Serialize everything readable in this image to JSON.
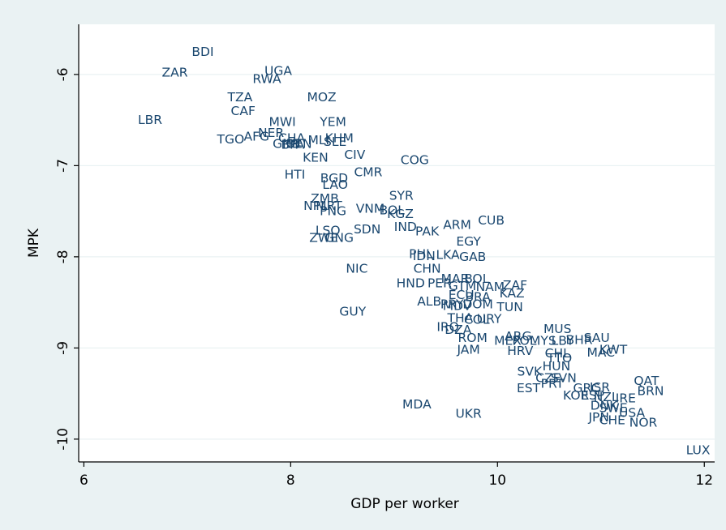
{
  "chart_data": {
    "type": "scatter",
    "xlabel": "GDP per worker",
    "ylabel": "MPK",
    "xlim": [
      5.95,
      12.1
    ],
    "ylim": [
      -10.25,
      -5.45
    ],
    "xticks": [
      6,
      8,
      10,
      12
    ],
    "yticks": [
      -6,
      -7,
      -8,
      -9,
      -10
    ],
    "grid": true,
    "colors": {
      "background": "#eaf2f3",
      "plot": "#ffffff",
      "grid": "#eaf2f3",
      "marker_label": "#1a476f"
    },
    "points": [
      {
        "label": "BDI",
        "x": 7.15,
        "y": -5.75
      },
      {
        "label": "ZAR",
        "x": 6.88,
        "y": -5.98
      },
      {
        "label": "UGA",
        "x": 7.88,
        "y": -5.96
      },
      {
        "label": "RWA",
        "x": 7.77,
        "y": -6.05
      },
      {
        "label": "TZA",
        "x": 7.51,
        "y": -6.25
      },
      {
        "label": "MOZ",
        "x": 8.3,
        "y": -6.25
      },
      {
        "label": "CAF",
        "x": 7.54,
        "y": -6.4
      },
      {
        "label": "LBR",
        "x": 6.64,
        "y": -6.5
      },
      {
        "label": "MWI",
        "x": 7.92,
        "y": -6.52
      },
      {
        "label": "YEM",
        "x": 8.41,
        "y": -6.52
      },
      {
        "label": "NER",
        "x": 7.81,
        "y": -6.64
      },
      {
        "label": "AFG",
        "x": 7.67,
        "y": -6.68
      },
      {
        "label": "TGO",
        "x": 7.42,
        "y": -6.71
      },
      {
        "label": "CHA",
        "x": 8.01,
        "y": -6.7
      },
      {
        "label": "KHM",
        "x": 8.47,
        "y": -6.7
      },
      {
        "label": "GNB",
        "x": 7.96,
        "y": -6.76
      },
      {
        "label": "BEN",
        "x": 8.08,
        "y": -6.76
      },
      {
        "label": "MLI",
        "x": 8.27,
        "y": -6.72
      },
      {
        "label": "SLE",
        "x": 8.43,
        "y": -6.74
      },
      {
        "label": "BFA",
        "x": 8.02,
        "y": -6.77
      },
      {
        "label": "KEN",
        "x": 8.24,
        "y": -6.91
      },
      {
        "label": "CIV",
        "x": 8.62,
        "y": -6.88
      },
      {
        "label": "COG",
        "x": 9.2,
        "y": -6.94
      },
      {
        "label": "HTI",
        "x": 8.04,
        "y": -7.1
      },
      {
        "label": "CMR",
        "x": 8.75,
        "y": -7.07
      },
      {
        "label": "BGD",
        "x": 8.42,
        "y": -7.14
      },
      {
        "label": "LAO",
        "x": 8.43,
        "y": -7.21
      },
      {
        "label": "SYR",
        "x": 9.07,
        "y": -7.33
      },
      {
        "label": "ZMB",
        "x": 8.33,
        "y": -7.36
      },
      {
        "label": "NPL",
        "x": 8.24,
        "y": -7.44
      },
      {
        "label": "MRT",
        "x": 8.37,
        "y": -7.44
      },
      {
        "label": "VNM",
        "x": 8.77,
        "y": -7.47
      },
      {
        "label": "BOL",
        "x": 8.98,
        "y": -7.49
      },
      {
        "label": "KGZ",
        "x": 9.06,
        "y": -7.53
      },
      {
        "label": "PNG",
        "x": 8.41,
        "y": -7.5
      },
      {
        "label": "CUB",
        "x": 9.94,
        "y": -7.6
      },
      {
        "label": "IND",
        "x": 9.11,
        "y": -7.67
      },
      {
        "label": "ARM",
        "x": 9.61,
        "y": -7.65
      },
      {
        "label": "PAK",
        "x": 9.32,
        "y": -7.72
      },
      {
        "label": "LSO",
        "x": 8.36,
        "y": -7.71
      },
      {
        "label": "SDN",
        "x": 8.74,
        "y": -7.7
      },
      {
        "label": "ZWE",
        "x": 8.32,
        "y": -7.79
      },
      {
        "label": "GNG",
        "x": 8.47,
        "y": -7.79
      },
      {
        "label": "EGY",
        "x": 9.72,
        "y": -7.83
      },
      {
        "label": "PHL",
        "x": 9.26,
        "y": -7.97
      },
      {
        "label": "IDN",
        "x": 9.29,
        "y": -7.99
      },
      {
        "label": "LKA",
        "x": 9.52,
        "y": -7.98
      },
      {
        "label": "GAB",
        "x": 9.76,
        "y": -8.0
      },
      {
        "label": "NIC",
        "x": 8.64,
        "y": -8.13
      },
      {
        "label": "CHN",
        "x": 9.32,
        "y": -8.13
      },
      {
        "label": "MAR",
        "x": 9.59,
        "y": -8.24
      },
      {
        "label": "BOL",
        "x": 9.8,
        "y": -8.24
      },
      {
        "label": "HND",
        "x": 9.16,
        "y": -8.29
      },
      {
        "label": "PER",
        "x": 9.44,
        "y": -8.29
      },
      {
        "label": "GTM",
        "x": 9.66,
        "y": -8.32
      },
      {
        "label": "ZAF",
        "x": 10.17,
        "y": -8.31
      },
      {
        "label": "NAM",
        "x": 9.93,
        "y": -8.33
      },
      {
        "label": "KAZ",
        "x": 10.14,
        "y": -8.4
      },
      {
        "label": "ECU",
        "x": 9.65,
        "y": -8.42
      },
      {
        "label": "BRA",
        "x": 9.81,
        "y": -8.44
      },
      {
        "label": "ALB",
        "x": 9.34,
        "y": -8.49
      },
      {
        "label": "PRY",
        "x": 9.56,
        "y": -8.52
      },
      {
        "label": "MDV",
        "x": 9.61,
        "y": -8.54
      },
      {
        "label": "DOM",
        "x": 9.81,
        "y": -8.52
      },
      {
        "label": "TUN",
        "x": 10.12,
        "y": -8.55
      },
      {
        "label": "THA",
        "x": 9.64,
        "y": -8.67
      },
      {
        "label": "COL",
        "x": 9.8,
        "y": -8.69
      },
      {
        "label": "URY",
        "x": 9.92,
        "y": -8.68
      },
      {
        "label": "IRQ",
        "x": 9.52,
        "y": -8.77
      },
      {
        "label": "DZA",
        "x": 9.62,
        "y": -8.8
      },
      {
        "label": "MUS",
        "x": 10.58,
        "y": -8.79
      },
      {
        "label": "ROM",
        "x": 9.76,
        "y": -8.89
      },
      {
        "label": "ARG",
        "x": 10.2,
        "y": -8.87
      },
      {
        "label": "BHR",
        "x": 10.79,
        "y": -8.91
      },
      {
        "label": "SAU",
        "x": 10.96,
        "y": -8.89
      },
      {
        "label": "MEX",
        "x": 10.1,
        "y": -8.92
      },
      {
        "label": "POL",
        "x": 10.26,
        "y": -8.92
      },
      {
        "label": "MYS",
        "x": 10.44,
        "y": -8.92
      },
      {
        "label": "LBY",
        "x": 10.63,
        "y": -8.92
      },
      {
        "label": "JAM",
        "x": 9.72,
        "y": -9.02
      },
      {
        "label": "HRV",
        "x": 10.22,
        "y": -9.03
      },
      {
        "label": "KWT",
        "x": 11.12,
        "y": -9.02
      },
      {
        "label": "MAC",
        "x": 11.0,
        "y": -9.05
      },
      {
        "label": "CHL",
        "x": 10.58,
        "y": -9.06
      },
      {
        "label": "TTO",
        "x": 10.6,
        "y": -9.11
      },
      {
        "label": "HUN",
        "x": 10.57,
        "y": -9.2
      },
      {
        "label": "SVK",
        "x": 10.31,
        "y": -9.26
      },
      {
        "label": "CZE",
        "x": 10.49,
        "y": -9.33
      },
      {
        "label": "SVN",
        "x": 10.64,
        "y": -9.33
      },
      {
        "label": "QAT",
        "x": 11.44,
        "y": -9.36
      },
      {
        "label": "PRT",
        "x": 10.53,
        "y": -9.39
      },
      {
        "label": "BRN",
        "x": 11.48,
        "y": -9.47
      },
      {
        "label": "EST",
        "x": 10.3,
        "y": -9.44
      },
      {
        "label": "GRC",
        "x": 10.86,
        "y": -9.44
      },
      {
        "label": "ISR",
        "x": 10.99,
        "y": -9.43
      },
      {
        "label": "KOR",
        "x": 10.76,
        "y": -9.52
      },
      {
        "label": "ESP",
        "x": 10.92,
        "y": -9.52
      },
      {
        "label": "NZL",
        "x": 11.05,
        "y": -9.54
      },
      {
        "label": "IRE",
        "x": 11.24,
        "y": -9.55
      },
      {
        "label": "DNK",
        "x": 11.03,
        "y": -9.63
      },
      {
        "label": "SWE",
        "x": 11.12,
        "y": -9.66
      },
      {
        "label": "USA",
        "x": 11.3,
        "y": -9.71
      },
      {
        "label": "JPN",
        "x": 10.98,
        "y": -9.76
      },
      {
        "label": "CHE",
        "x": 11.11,
        "y": -9.79
      },
      {
        "label": "NOR",
        "x": 11.41,
        "y": -9.82
      },
      {
        "label": "MDA",
        "x": 9.22,
        "y": -9.62
      },
      {
        "label": "UKR",
        "x": 9.72,
        "y": -9.72
      },
      {
        "label": "GUY",
        "x": 8.6,
        "y": -8.6
      },
      {
        "label": "LUX",
        "x": 11.94,
        "y": -10.12
      }
    ]
  }
}
